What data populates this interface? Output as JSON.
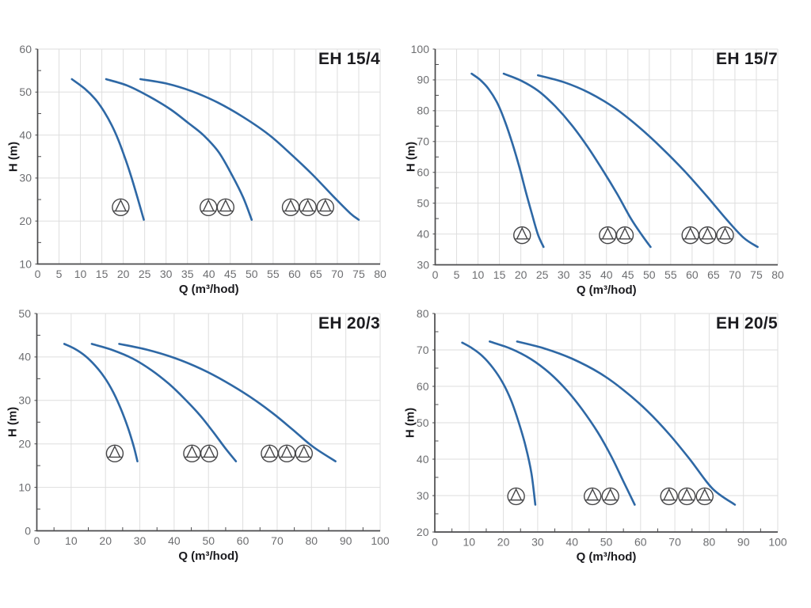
{
  "page": {
    "background": "#ffffff"
  },
  "colors": {
    "curve": "#2e68a5",
    "grid": "#dedede",
    "axis": "#4b4b4d",
    "tick_text": "#6d6e71",
    "label_text": "#1b1b1f",
    "icon_stroke": "#454547"
  },
  "chart_data": [
    {
      "type": "line",
      "title": "EH 15/4",
      "xlabel": "Q (m³/hod)",
      "ylabel": "H (m)",
      "xlim": [
        0,
        80
      ],
      "xtick_step": 5,
      "x_minor_step": 0,
      "ylim": [
        10,
        60
      ],
      "ytick_step": 10,
      "y_minor_step": 5,
      "grid": "on",
      "series": [
        {
          "name": "1 pump",
          "points": [
            [
              8,
              53
            ],
            [
              11,
              50.8
            ],
            [
              13.5,
              48.3
            ],
            [
              15.5,
              45.5
            ],
            [
              17.3,
              42.3
            ],
            [
              18.8,
              39
            ],
            [
              20.3,
              35
            ],
            [
              21.8,
              30.5
            ],
            [
              23.3,
              25.5
            ],
            [
              24.8,
              20.3
            ]
          ]
        },
        {
          "name": "2 pumps",
          "points": [
            [
              16,
              53
            ],
            [
              21,
              51.5
            ],
            [
              26,
              49
            ],
            [
              31,
              46
            ],
            [
              35.2,
              42.8
            ],
            [
              38.7,
              40
            ],
            [
              42.3,
              36
            ],
            [
              45.5,
              30.5
            ],
            [
              48,
              25.5
            ],
            [
              50,
              20.3
            ]
          ]
        },
        {
          "name": "3 pumps",
          "points": [
            [
              24,
              53
            ],
            [
              30,
              52
            ],
            [
              36,
              50.2
            ],
            [
              42,
              47.6
            ],
            [
              48,
              44.2
            ],
            [
              54,
              40.1
            ],
            [
              59,
              35.7
            ],
            [
              64,
              31
            ],
            [
              69,
              25.8
            ],
            [
              73,
              21.8
            ],
            [
              75,
              20.3
            ]
          ]
        }
      ],
      "pump_icons": {
        "h": 23.2,
        "groups": [
          [
            19.4
          ],
          [
            39.9,
            43.9
          ],
          [
            59.1,
            63.1,
            67.2
          ]
        ]
      }
    },
    {
      "type": "line",
      "title": "EH 15/7",
      "xlabel": "Q (m³/hod)",
      "ylabel": "H (m)",
      "xlim": [
        0,
        80
      ],
      "xtick_step": 5,
      "x_minor_step": 0,
      "ylim": [
        30,
        100
      ],
      "ytick_step": 10,
      "y_minor_step": 5,
      "grid": "on",
      "series": [
        {
          "name": "1 pump",
          "points": [
            [
              8.5,
              92
            ],
            [
              10.5,
              90
            ],
            [
              12.5,
              87
            ],
            [
              14.5,
              82.5
            ],
            [
              16.3,
              76.5
            ],
            [
              18,
              69.5
            ],
            [
              19.7,
              61.5
            ],
            [
              21.2,
              53.5
            ],
            [
              22.7,
              46
            ],
            [
              24,
              39.8
            ],
            [
              25.3,
              35.8
            ]
          ]
        },
        {
          "name": "2 pumps",
          "points": [
            [
              16,
              92
            ],
            [
              20,
              89.8
            ],
            [
              24,
              86.5
            ],
            [
              28,
              81.5
            ],
            [
              31.8,
              75.5
            ],
            [
              35.5,
              68.5
            ],
            [
              39,
              61
            ],
            [
              42.5,
              53
            ],
            [
              45.7,
              45
            ],
            [
              48.3,
              39.6
            ],
            [
              50.3,
              35.8
            ]
          ]
        },
        {
          "name": "3 pumps",
          "points": [
            [
              24,
              91.5
            ],
            [
              30,
              89.3
            ],
            [
              36,
              85.8
            ],
            [
              42,
              80.8
            ],
            [
              47.5,
              74.8
            ],
            [
              53,
              67.8
            ],
            [
              58.3,
              60.3
            ],
            [
              63.3,
              52.5
            ],
            [
              68,
              44.8
            ],
            [
              72,
              38.8
            ],
            [
              75.3,
              35.8
            ]
          ]
        }
      ],
      "pump_icons": {
        "h": 39.6,
        "groups": [
          [
            20.3
          ],
          [
            40.3,
            44.3
          ],
          [
            59.6,
            63.6,
            67.7
          ]
        ]
      }
    },
    {
      "type": "line",
      "title": "EH 20/3",
      "xlabel": "Q (m³/hod)",
      "ylabel": "H (m)",
      "xlim": [
        0,
        100
      ],
      "xtick_step": 10,
      "x_minor_step": 5,
      "ylim": [
        0,
        50
      ],
      "ytick_step": 10,
      "y_minor_step": 5,
      "grid": "on",
      "series": [
        {
          "name": "1 pump",
          "points": [
            [
              8,
              43
            ],
            [
              11,
              41.9
            ],
            [
              14,
              40.3
            ],
            [
              17,
              38
            ],
            [
              19.8,
              35.2
            ],
            [
              22.3,
              31.8
            ],
            [
              24.5,
              28
            ],
            [
              26.5,
              23.8
            ],
            [
              28.2,
              19.5
            ],
            [
              29.3,
              16
            ]
          ]
        },
        {
          "name": "2 pumps",
          "points": [
            [
              16,
              43
            ],
            [
              22,
              41.6
            ],
            [
              28,
              39.6
            ],
            [
              33.5,
              36.9
            ],
            [
              38.5,
              33.8
            ],
            [
              43,
              30.4
            ],
            [
              47.5,
              26.6
            ],
            [
              51.5,
              22.6
            ],
            [
              55,
              18.9
            ],
            [
              58,
              16
            ]
          ]
        },
        {
          "name": "3 pumps",
          "points": [
            [
              24,
              43
            ],
            [
              32,
              41.7
            ],
            [
              40,
              39.8
            ],
            [
              48,
              37.2
            ],
            [
              55,
              34.3
            ],
            [
              62,
              30.9
            ],
            [
              68.5,
              27.2
            ],
            [
              74.5,
              23.3
            ],
            [
              80.5,
              19.3
            ],
            [
              87,
              16
            ]
          ]
        }
      ],
      "pump_icons": {
        "h": 17.8,
        "groups": [
          [
            22.7
          ],
          [
            45.2,
            50.2
          ],
          [
            67.8,
            72.8,
            77.8
          ]
        ]
      }
    },
    {
      "type": "line",
      "title": "EH 20/5",
      "xlabel": "Q (m³/hod)",
      "ylabel": "H (m)",
      "xlim": [
        0,
        100
      ],
      "xtick_step": 10,
      "x_minor_step": 5,
      "ylim": [
        20,
        80
      ],
      "ytick_step": 10,
      "y_minor_step": 5,
      "grid": "on",
      "series": [
        {
          "name": "1 pump",
          "points": [
            [
              8,
              72
            ],
            [
              11,
              70.4
            ],
            [
              14,
              68.2
            ],
            [
              17,
              65
            ],
            [
              19.8,
              61
            ],
            [
              22.3,
              56
            ],
            [
              24.5,
              50
            ],
            [
              26.5,
              43.5
            ],
            [
              28.2,
              36
            ],
            [
              29.3,
              27.5
            ]
          ]
        },
        {
          "name": "2 pumps",
          "points": [
            [
              16,
              72.3
            ],
            [
              22,
              70.4
            ],
            [
              28,
              67.5
            ],
            [
              33.5,
              63.6
            ],
            [
              38.5,
              58.9
            ],
            [
              43,
              53.6
            ],
            [
              47.5,
              47.4
            ],
            [
              51.5,
              40.7
            ],
            [
              55,
              33.9
            ],
            [
              58.3,
              27.5
            ]
          ]
        },
        {
          "name": "3 pumps",
          "points": [
            [
              24,
              72.3
            ],
            [
              32,
              70.4
            ],
            [
              40,
              67.6
            ],
            [
              48,
              63.7
            ],
            [
              55,
              59
            ],
            [
              62,
              53.2
            ],
            [
              68.5,
              46.7
            ],
            [
              74.5,
              39.8
            ],
            [
              81,
              31.9
            ],
            [
              87.5,
              27.5
            ]
          ]
        }
      ],
      "pump_icons": {
        "h": 29.8,
        "groups": [
          [
            23.7
          ],
          [
            46,
            51.2
          ],
          [
            68.3,
            73.5,
            78.7
          ]
        ]
      }
    }
  ]
}
